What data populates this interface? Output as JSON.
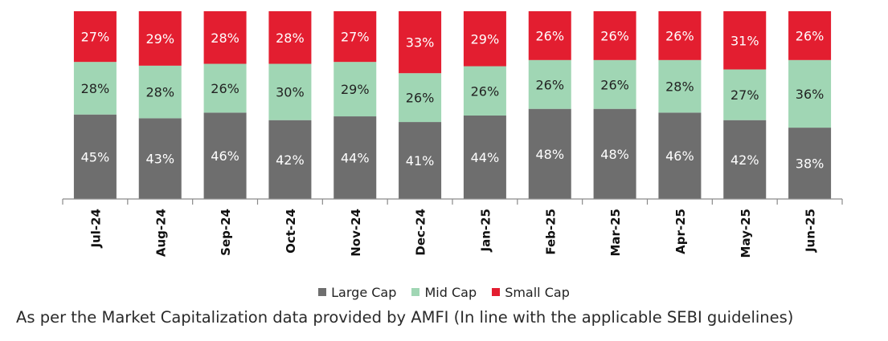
{
  "chart_data": {
    "type": "bar",
    "stacked": true,
    "categories": [
      "Jul-24",
      "Aug-24",
      "Sep-24",
      "Oct-24",
      "Nov-24",
      "Dec-24",
      "Jan-25",
      "Feb-25",
      "Mar-25",
      "Apr-25",
      "May-25",
      "Jun-25"
    ],
    "series": [
      {
        "name": "Large Cap",
        "color": "#6e6e6e",
        "label_color": "#ffffff",
        "values": [
          45,
          43,
          46,
          42,
          44,
          41,
          44,
          48,
          48,
          46,
          42,
          38
        ]
      },
      {
        "name": "Mid Cap",
        "color": "#a0d6b4",
        "label_color": "#222222",
        "values": [
          28,
          28,
          26,
          30,
          29,
          26,
          26,
          26,
          26,
          28,
          27,
          36
        ]
      },
      {
        "name": "Small Cap",
        "color": "#e31e30",
        "label_color": "#ffffff",
        "values": [
          27,
          29,
          28,
          28,
          27,
          33,
          29,
          26,
          26,
          26,
          31,
          26
        ]
      }
    ],
    "value_suffix": "%",
    "ylim": [
      0,
      100
    ],
    "grid": false,
    "legend_position": "bottom"
  },
  "footnote": "As per the Market Capitalization data provided by AMFI (In line with the applicable SEBI guidelines)"
}
